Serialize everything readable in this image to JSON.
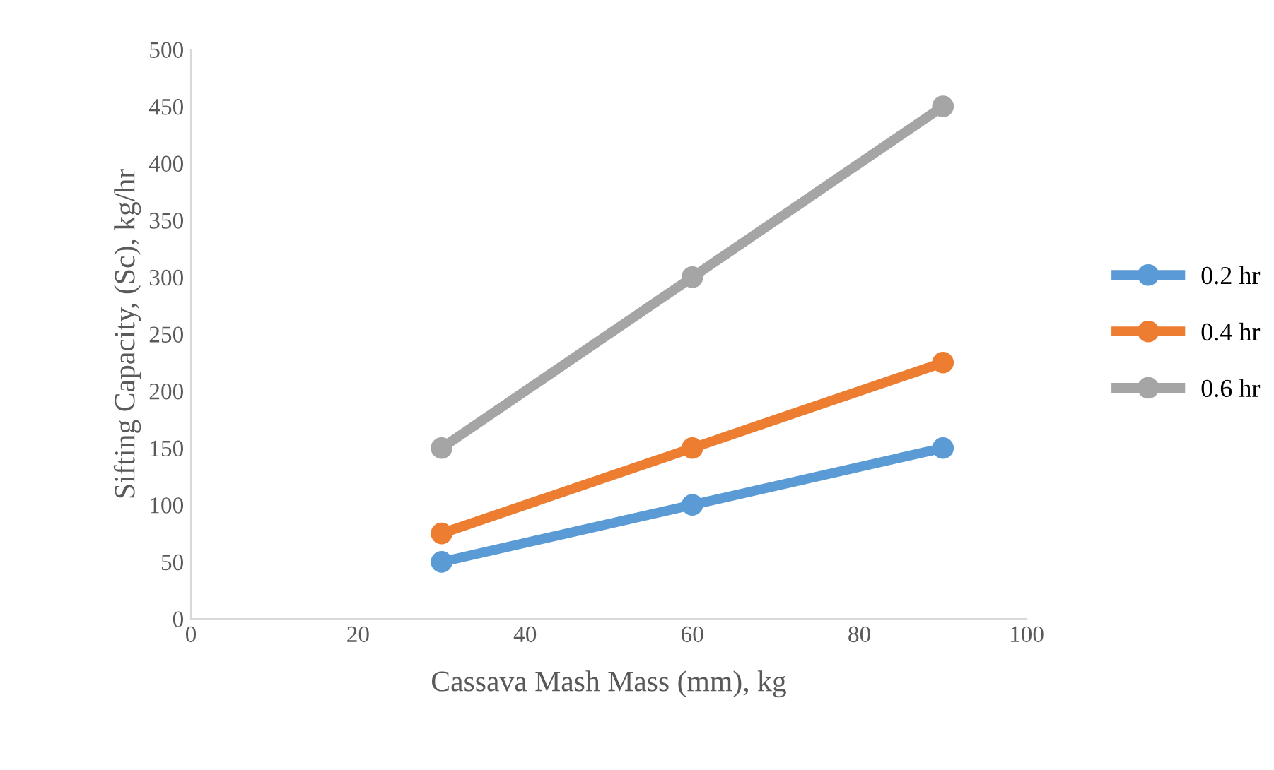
{
  "chart_data": {
    "type": "line",
    "xlabel": "Cassava Mash Mass (mm), kg",
    "ylabel": "Sifting Capacity, (Sc), kg/hr",
    "x": [
      30,
      60,
      90
    ],
    "series": [
      {
        "name": "0.2 hr",
        "color": "#5b9bd5",
        "values": [
          50,
          100,
          150
        ]
      },
      {
        "name": "0.4 hr",
        "color": "#ed7d31",
        "values": [
          75,
          150,
          225
        ]
      },
      {
        "name": "0.6 hr",
        "color": "#a5a5a5",
        "values": [
          150,
          300,
          450
        ]
      }
    ],
    "xlim": [
      0,
      100
    ],
    "xticks": [
      0,
      20,
      40,
      60,
      80,
      100
    ],
    "ylim": [
      0,
      500
    ],
    "yticks": [
      0,
      50,
      100,
      150,
      200,
      250,
      300,
      350,
      400,
      450,
      500
    ],
    "grid": false,
    "legend": "right",
    "marker": "circle",
    "line_style": "solid"
  }
}
